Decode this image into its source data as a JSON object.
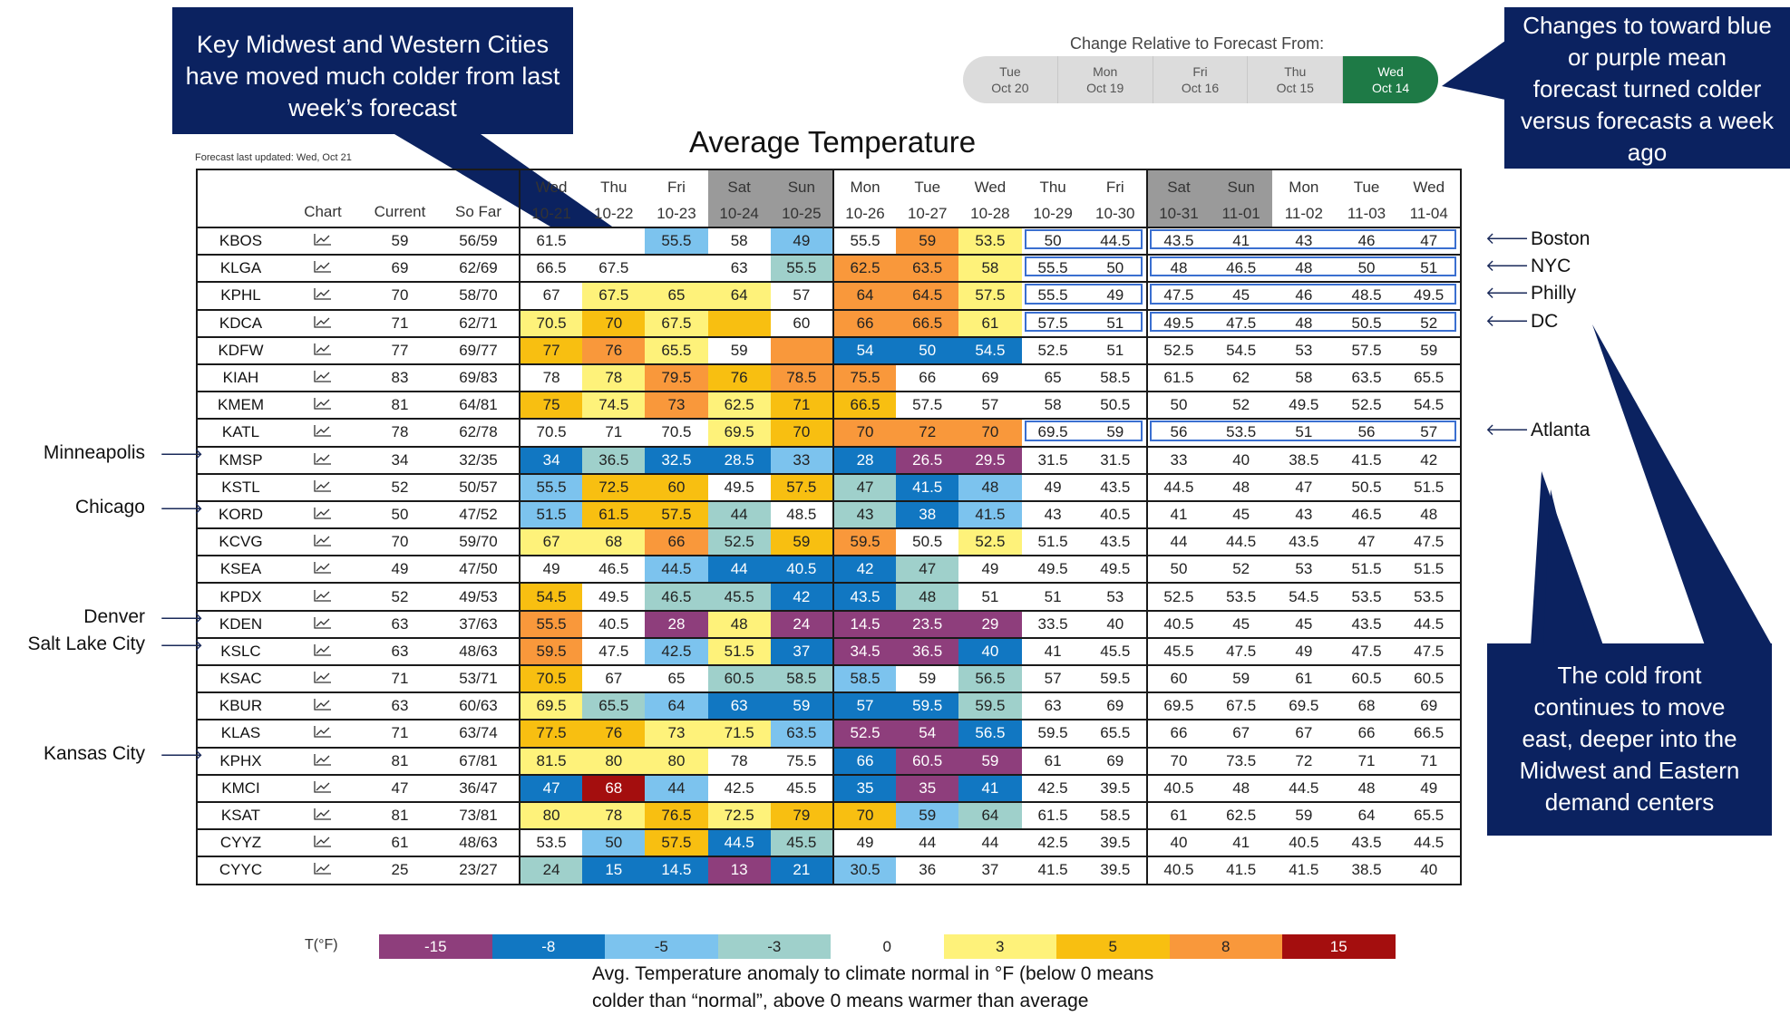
{
  "callouts": {
    "top_left": [
      "Key Midwest and Western Cities",
      "have moved much colder from last",
      "week’s forecast"
    ],
    "top_right": [
      "Changes to toward blue",
      "or purple mean",
      "forecast turned colder",
      "versus forecasts a week",
      "ago"
    ],
    "bottom_right": [
      "The cold front",
      "continues to move",
      "east, deeper into the",
      "Midwest and Eastern",
      "demand centers"
    ]
  },
  "selector": {
    "title": "Change Relative to Forecast From:",
    "options": [
      {
        "day": "Tue",
        "date": "Oct 20"
      },
      {
        "day": "Mon",
        "date": "Oct 19"
      },
      {
        "day": "Fri",
        "date": "Oct 16"
      },
      {
        "day": "Thu",
        "date": "Oct 15"
      },
      {
        "day": "Wed",
        "date": "Oct 14"
      }
    ],
    "active_index": 4,
    "active_color": "#1e7a46"
  },
  "title": "Average Temperature",
  "updated": "Forecast last updated: Wed, Oct 21",
  "columns": {
    "chart": "Chart",
    "current": "Current",
    "so_far": "So Far",
    "days": [
      {
        "d": "Wed",
        "dt": "10-21",
        "wk": false
      },
      {
        "d": "Thu",
        "dt": "10-22",
        "wk": false
      },
      {
        "d": "Fri",
        "dt": "10-23",
        "wk": false
      },
      {
        "d": "Sat",
        "dt": "10-24",
        "wk": true
      },
      {
        "d": "Sun",
        "dt": "10-25",
        "wk": true
      },
      {
        "d": "Mon",
        "dt": "10-26",
        "wk": false
      },
      {
        "d": "Tue",
        "dt": "10-27",
        "wk": false
      },
      {
        "d": "Wed",
        "dt": "10-28",
        "wk": false
      },
      {
        "d": "Thu",
        "dt": "10-29",
        "wk": false
      },
      {
        "d": "Fri",
        "dt": "10-30",
        "wk": false
      },
      {
        "d": "Sat",
        "dt": "10-31",
        "wk": true
      },
      {
        "d": "Sun",
        "dt": "11-01",
        "wk": true
      },
      {
        "d": "Mon",
        "dt": "11-02",
        "wk": false
      },
      {
        "d": "Tue",
        "dt": "11-03",
        "wk": false
      },
      {
        "d": "Wed",
        "dt": "11-04",
        "wk": false
      }
    ]
  },
  "palette": {
    "p15": "#8e3e7c",
    "m8": "#1177c2",
    "m5": "#7cc3ee",
    "m3": "#9fd0cb",
    "z": "#ffffff",
    "a3": "#fef27a",
    "a5": "#f8bf11",
    "a8": "#f9983b",
    "a15": "#a40e0e"
  },
  "rows": [
    {
      "s": "KBOS",
      "cur": "59",
      "sf": "56/59",
      "v": [
        "61.5",
        "",
        "55.5",
        "58",
        "49",
        "55.5",
        "59",
        "53.5",
        "50",
        "44.5",
        "43.5",
        "41",
        "43",
        "46",
        "47"
      ],
      "c": [
        "z",
        "z",
        "m5",
        "z",
        "m5",
        "z",
        "a8",
        "a3",
        "z",
        "z",
        "z",
        "z",
        "z",
        "z",
        "z"
      ]
    },
    {
      "s": "KLGA",
      "cur": "69",
      "sf": "62/69",
      "v": [
        "66.5",
        "67.5",
        "",
        "63",
        "55.5",
        "62.5",
        "63.5",
        "58",
        "55.5",
        "50",
        "48",
        "46.5",
        "48",
        "50",
        "51"
      ],
      "c": [
        "z",
        "z",
        "z",
        "z",
        "m3",
        "a8",
        "a8",
        "a3",
        "z",
        "z",
        "z",
        "z",
        "z",
        "z",
        "z"
      ]
    },
    {
      "s": "KPHL",
      "cur": "70",
      "sf": "58/70",
      "v": [
        "67",
        "67.5",
        "65",
        "64",
        "57",
        "64",
        "64.5",
        "57.5",
        "55.5",
        "49",
        "47.5",
        "45",
        "46",
        "48.5",
        "49.5"
      ],
      "c": [
        "z",
        "a3",
        "a3",
        "a3",
        "z",
        "a8",
        "a8",
        "a3",
        "z",
        "z",
        "z",
        "z",
        "z",
        "z",
        "z"
      ]
    },
    {
      "s": "KDCA",
      "cur": "71",
      "sf": "62/71",
      "v": [
        "70.5",
        "70",
        "67.5",
        "",
        "60",
        "66",
        "66.5",
        "61",
        "57.5",
        "51",
        "49.5",
        "47.5",
        "48",
        "50.5",
        "52"
      ],
      "c": [
        "a3",
        "a5",
        "a3",
        "a5",
        "z",
        "a8",
        "a8",
        "a3",
        "z",
        "z",
        "z",
        "z",
        "z",
        "z",
        "z"
      ]
    },
    {
      "s": "KDFW",
      "cur": "77",
      "sf": "69/77",
      "v": [
        "77",
        "76",
        "65.5",
        "59",
        "",
        "54",
        "50",
        "54.5",
        "52.5",
        "51",
        "52.5",
        "54.5",
        "53",
        "57.5",
        "59"
      ],
      "c": [
        "a5",
        "a8",
        "a3",
        "z",
        "a8",
        "m8",
        "m8",
        "m8",
        "z",
        "z",
        "z",
        "z",
        "z",
        "z",
        "z"
      ]
    },
    {
      "s": "KIAH",
      "cur": "83",
      "sf": "69/83",
      "v": [
        "78",
        "78",
        "79.5",
        "76",
        "78.5",
        "75.5",
        "66",
        "69",
        "65",
        "58.5",
        "61.5",
        "62",
        "58",
        "63.5",
        "65.5"
      ],
      "c": [
        "z",
        "a3",
        "a8",
        "a5",
        "a8",
        "a8",
        "z",
        "z",
        "z",
        "z",
        "z",
        "z",
        "z",
        "z",
        "z"
      ]
    },
    {
      "s": "KMEM",
      "cur": "81",
      "sf": "64/81",
      "v": [
        "75",
        "74.5",
        "73",
        "62.5",
        "71",
        "66.5",
        "57.5",
        "57",
        "58",
        "50.5",
        "50",
        "52",
        "49.5",
        "52.5",
        "54.5"
      ],
      "c": [
        "a5",
        "a3",
        "a8",
        "a3",
        "a5",
        "a5",
        "z",
        "z",
        "z",
        "z",
        "z",
        "z",
        "z",
        "z",
        "z"
      ]
    },
    {
      "s": "KATL",
      "cur": "78",
      "sf": "62/78",
      "v": [
        "70.5",
        "71",
        "70.5",
        "69.5",
        "70",
        "70",
        "72",
        "70",
        "69.5",
        "59",
        "56",
        "53.5",
        "51",
        "56",
        "57"
      ],
      "c": [
        "z",
        "z",
        "z",
        "a3",
        "a5",
        "a8",
        "a8",
        "a8",
        "z",
        "z",
        "z",
        "z",
        "z",
        "z",
        "z"
      ]
    },
    {
      "s": "KMSP",
      "cur": "34",
      "sf": "32/35",
      "v": [
        "34",
        "36.5",
        "32.5",
        "28.5",
        "33",
        "28",
        "26.5",
        "29.5",
        "31.5",
        "31.5",
        "33",
        "40",
        "38.5",
        "41.5",
        "42"
      ],
      "c": [
        "m8",
        "m3",
        "m8",
        "m8",
        "m5",
        "m8",
        "p15",
        "p15",
        "z",
        "z",
        "z",
        "z",
        "z",
        "z",
        "z"
      ]
    },
    {
      "s": "KSTL",
      "cur": "52",
      "sf": "50/57",
      "v": [
        "55.5",
        "72.5",
        "60",
        "49.5",
        "57.5",
        "47",
        "41.5",
        "48",
        "49",
        "43.5",
        "44.5",
        "48",
        "47",
        "50.5",
        "51.5"
      ],
      "c": [
        "m5",
        "a5",
        "a5",
        "z",
        "a5",
        "m3",
        "m8",
        "m5",
        "z",
        "z",
        "z",
        "z",
        "z",
        "z",
        "z"
      ]
    },
    {
      "s": "KORD",
      "cur": "50",
      "sf": "47/52",
      "v": [
        "51.5",
        "61.5",
        "57.5",
        "44",
        "48.5",
        "43",
        "38",
        "41.5",
        "43",
        "40.5",
        "41",
        "45",
        "43",
        "46.5",
        "48"
      ],
      "c": [
        "m5",
        "a5",
        "a5",
        "m3",
        "z",
        "m3",
        "m8",
        "m5",
        "z",
        "z",
        "z",
        "z",
        "z",
        "z",
        "z"
      ]
    },
    {
      "s": "KCVG",
      "cur": "70",
      "sf": "59/70",
      "v": [
        "67",
        "68",
        "66",
        "52.5",
        "59",
        "59.5",
        "50.5",
        "52.5",
        "51.5",
        "43.5",
        "44",
        "44.5",
        "43.5",
        "47",
        "47.5"
      ],
      "c": [
        "a3",
        "a3",
        "a8",
        "m3",
        "a5",
        "a8",
        "z",
        "a3",
        "z",
        "z",
        "z",
        "z",
        "z",
        "z",
        "z"
      ]
    },
    {
      "s": "KSEA",
      "cur": "49",
      "sf": "47/50",
      "v": [
        "49",
        "46.5",
        "44.5",
        "44",
        "40.5",
        "42",
        "47",
        "49",
        "49.5",
        "49.5",
        "50",
        "52",
        "53",
        "51.5",
        "51.5"
      ],
      "c": [
        "z",
        "z",
        "m5",
        "m8",
        "m8",
        "m8",
        "m3",
        "z",
        "z",
        "z",
        "z",
        "z",
        "z",
        "z",
        "z"
      ]
    },
    {
      "s": "KPDX",
      "cur": "52",
      "sf": "49/53",
      "v": [
        "54.5",
        "49.5",
        "46.5",
        "45.5",
        "42",
        "43.5",
        "48",
        "51",
        "51",
        "53",
        "52.5",
        "53.5",
        "54.5",
        "53.5",
        "53.5"
      ],
      "c": [
        "a5",
        "z",
        "m3",
        "m3",
        "m8",
        "m8",
        "m3",
        "z",
        "z",
        "z",
        "z",
        "z",
        "z",
        "z",
        "z"
      ]
    },
    {
      "s": "KDEN",
      "cur": "63",
      "sf": "37/63",
      "v": [
        "55.5",
        "40.5",
        "28",
        "48",
        "24",
        "14.5",
        "23.5",
        "29",
        "33.5",
        "40",
        "40.5",
        "45",
        "45",
        "43.5",
        "44.5"
      ],
      "c": [
        "a8",
        "z",
        "p15",
        "a3",
        "p15",
        "p15",
        "p15",
        "p15",
        "z",
        "z",
        "z",
        "z",
        "z",
        "z",
        "z"
      ]
    },
    {
      "s": "KSLC",
      "cur": "63",
      "sf": "48/63",
      "v": [
        "59.5",
        "47.5",
        "42.5",
        "51.5",
        "37",
        "34.5",
        "36.5",
        "40",
        "41",
        "45.5",
        "45.5",
        "47.5",
        "49",
        "47.5",
        "47.5"
      ],
      "c": [
        "a8",
        "z",
        "m5",
        "a3",
        "m8",
        "p15",
        "p15",
        "m8",
        "z",
        "z",
        "z",
        "z",
        "z",
        "z",
        "z"
      ]
    },
    {
      "s": "KSAC",
      "cur": "71",
      "sf": "53/71",
      "v": [
        "70.5",
        "67",
        "65",
        "60.5",
        "58.5",
        "58.5",
        "59",
        "56.5",
        "57",
        "59.5",
        "60",
        "59",
        "61",
        "60.5",
        "60.5"
      ],
      "c": [
        "a5",
        "z",
        "z",
        "m3",
        "m3",
        "m5",
        "z",
        "m3",
        "z",
        "z",
        "z",
        "z",
        "z",
        "z",
        "z"
      ]
    },
    {
      "s": "KBUR",
      "cur": "63",
      "sf": "60/63",
      "v": [
        "69.5",
        "65.5",
        "64",
        "63",
        "59",
        "57",
        "59.5",
        "59.5",
        "63",
        "69",
        "69.5",
        "67.5",
        "69.5",
        "68",
        "69"
      ],
      "c": [
        "a3",
        "m3",
        "m5",
        "m8",
        "m8",
        "m8",
        "m8",
        "m3",
        "z",
        "z",
        "z",
        "z",
        "z",
        "z",
        "z"
      ]
    },
    {
      "s": "KLAS",
      "cur": "71",
      "sf": "63/74",
      "v": [
        "77.5",
        "76",
        "73",
        "71.5",
        "63.5",
        "52.5",
        "54",
        "56.5",
        "59.5",
        "65.5",
        "66",
        "67",
        "67",
        "66",
        "66.5"
      ],
      "c": [
        "a5",
        "a5",
        "a3",
        "a3",
        "m5",
        "p15",
        "p15",
        "m8",
        "z",
        "z",
        "z",
        "z",
        "z",
        "z",
        "z"
      ]
    },
    {
      "s": "KPHX",
      "cur": "81",
      "sf": "67/81",
      "v": [
        "81.5",
        "80",
        "80",
        "78",
        "75.5",
        "66",
        "60.5",
        "59",
        "61",
        "69",
        "70",
        "73.5",
        "72",
        "71",
        "71"
      ],
      "c": [
        "a3",
        "a3",
        "a3",
        "z",
        "z",
        "m8",
        "p15",
        "p15",
        "z",
        "z",
        "z",
        "z",
        "z",
        "z",
        "z"
      ]
    },
    {
      "s": "KMCI",
      "cur": "47",
      "sf": "36/47",
      "v": [
        "47",
        "68",
        "44",
        "42.5",
        "45.5",
        "35",
        "35",
        "41",
        "42.5",
        "39.5",
        "40.5",
        "48",
        "44.5",
        "48",
        "49"
      ],
      "c": [
        "m8",
        "a15",
        "m5",
        "z",
        "z",
        "m8",
        "p15",
        "m8",
        "z",
        "z",
        "z",
        "z",
        "z",
        "z",
        "z"
      ]
    },
    {
      "s": "KSAT",
      "cur": "81",
      "sf": "73/81",
      "v": [
        "80",
        "78",
        "76.5",
        "72.5",
        "79",
        "70",
        "59",
        "64",
        "61.5",
        "58.5",
        "61",
        "62.5",
        "59",
        "64",
        "65.5"
      ],
      "c": [
        "a3",
        "a3",
        "a5",
        "a3",
        "a5",
        "a5",
        "m5",
        "m3",
        "z",
        "z",
        "z",
        "z",
        "z",
        "z",
        "z"
      ]
    },
    {
      "s": "CYYZ",
      "cur": "61",
      "sf": "48/63",
      "v": [
        "53.5",
        "50",
        "57.5",
        "44.5",
        "45.5",
        "49",
        "44",
        "44",
        "42.5",
        "39.5",
        "40",
        "41",
        "40.5",
        "43.5",
        "44.5"
      ],
      "c": [
        "z",
        "m5",
        "a5",
        "m8",
        "m3",
        "z",
        "z",
        "z",
        "z",
        "z",
        "z",
        "z",
        "z",
        "z",
        "z"
      ]
    },
    {
      "s": "CYYC",
      "cur": "25",
      "sf": "23/27",
      "v": [
        "24",
        "15",
        "14.5",
        "13",
        "21",
        "30.5",
        "36",
        "37",
        "41.5",
        "39.5",
        "40.5",
        "41.5",
        "41.5",
        "38.5",
        "40"
      ],
      "c": [
        "m3",
        "m8",
        "m8",
        "p15",
        "m8",
        "m5",
        "z",
        "z",
        "z",
        "z",
        "z",
        "z",
        "z",
        "z",
        "z"
      ]
    }
  ],
  "cities_right": [
    {
      "name": "Boston",
      "row": 0
    },
    {
      "name": "NYC",
      "row": 1
    },
    {
      "name": "Philly",
      "row": 2
    },
    {
      "name": "DC",
      "row": 3
    },
    {
      "name": "Atlanta",
      "row": 7
    }
  ],
  "cities_left": [
    {
      "name": "Minneapolis",
      "row": 8
    },
    {
      "name": "Chicago",
      "row": 10
    },
    {
      "name": "Denver",
      "row": 14
    },
    {
      "name": "Salt Lake City",
      "row": 15
    },
    {
      "name": "Kansas City",
      "row": 19
    }
  ],
  "legend": {
    "label": "T(°F)",
    "items": [
      {
        "t": "-15",
        "c": "#8e3e7c",
        "fg": "#ffffff"
      },
      {
        "t": "-8",
        "c": "#1177c2",
        "fg": "#ffffff"
      },
      {
        "t": "-5",
        "c": "#7cc3ee",
        "fg": "#222222"
      },
      {
        "t": "-3",
        "c": "#9fd0cb",
        "fg": "#222222"
      },
      {
        "t": "0",
        "c": "#ffffff",
        "fg": "#222222"
      },
      {
        "t": "3",
        "c": "#fef27a",
        "fg": "#222222"
      },
      {
        "t": "5",
        "c": "#f8bf11",
        "fg": "#222222"
      },
      {
        "t": "8",
        "c": "#f9983b",
        "fg": "#222222"
      },
      {
        "t": "15",
        "c": "#a40e0e",
        "fg": "#ffffff"
      }
    ]
  },
  "note": [
    "Avg. Temperature anomaly to climate normal in °F (below 0 means",
    "colder than “normal”, above 0 means warmer than average"
  ]
}
